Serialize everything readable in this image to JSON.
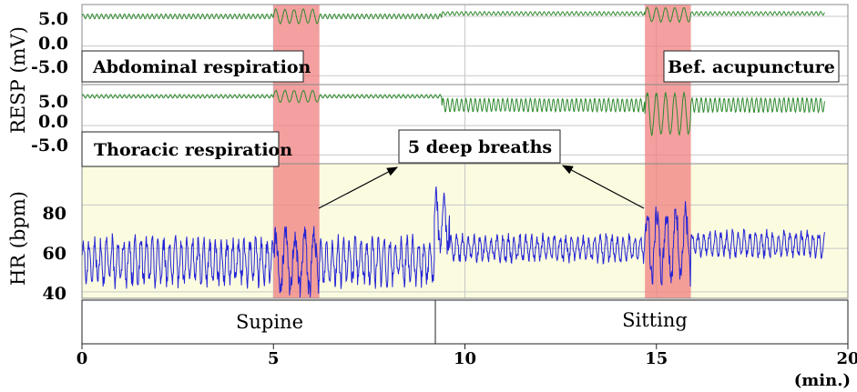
{
  "colors": {
    "resp_line": "#2f8a2f",
    "hr_line": "#2323d6",
    "hr_background": "#fbfbe0",
    "highlight": "#f08080",
    "grid": "#c8c8c8"
  },
  "labels": {
    "resp_ylabel": "RESP (mV)",
    "hr_ylabel": "HR (bpm)",
    "abdominal": "Abdominal respiration",
    "thoracic": "Thoracic respiration",
    "bef_acupuncture": "Bef. acupuncture",
    "deep_breaths": "5 deep breaths",
    "supine": "Supine",
    "sitting": "Sitting",
    "x_unit": "(min.)"
  },
  "chart_data": [
    {
      "type": "line",
      "panel": "abdominal",
      "ylabel": "RESP (mV)",
      "yticks": [
        "5.0",
        "0.0",
        "-5.0"
      ],
      "ylim": [
        -6.5,
        7
      ],
      "xlim": [
        0,
        20
      ],
      "series": [
        {
          "name": "Abdominal respiration",
          "segments": [
            {
              "x_start": 0.0,
              "x_end": 5.0,
              "baseline": 5.0,
              "amplitude": 0.4,
              "period": 0.12
            },
            {
              "x_start": 5.0,
              "x_end": 6.2,
              "baseline": 5.0,
              "amplitude": 1.2,
              "period": 0.24
            },
            {
              "x_start": 6.2,
              "x_end": 9.4,
              "baseline": 5.0,
              "amplitude": 0.4,
              "period": 0.12
            },
            {
              "x_start": 9.4,
              "x_end": 14.7,
              "baseline": 5.5,
              "amplitude": 0.3,
              "period": 0.12
            },
            {
              "x_start": 14.7,
              "x_end": 15.9,
              "baseline": 5.3,
              "amplitude": 1.2,
              "period": 0.24
            },
            {
              "x_start": 15.9,
              "x_end": 19.4,
              "baseline": 5.5,
              "amplitude": 0.3,
              "period": 0.12
            }
          ]
        }
      ]
    },
    {
      "type": "line",
      "panel": "thoracic",
      "ylabel": "RESP (mV)",
      "yticks": [
        "5.0",
        "0.0",
        "-5.0"
      ],
      "ylim": [
        -6.5,
        7
      ],
      "xlim": [
        0,
        20
      ],
      "series": [
        {
          "name": "Thoracic respiration",
          "segments": [
            {
              "x_start": 0.0,
              "x_end": 5.0,
              "baseline": 5.0,
              "amplitude": 0.3,
              "period": 0.12
            },
            {
              "x_start": 5.0,
              "x_end": 6.2,
              "baseline": 5.0,
              "amplitude": 1.0,
              "period": 0.24
            },
            {
              "x_start": 6.2,
              "x_end": 9.4,
              "baseline": 5.0,
              "amplitude": 0.3,
              "period": 0.12
            },
            {
              "x_start": 9.4,
              "x_end": 14.7,
              "baseline": 3.5,
              "amplitude": 1.1,
              "period": 0.12
            },
            {
              "x_start": 14.7,
              "x_end": 15.9,
              "baseline": 2.0,
              "amplitude": 3.5,
              "period": 0.24
            },
            {
              "x_start": 15.9,
              "x_end": 19.4,
              "baseline": 3.5,
              "amplitude": 1.2,
              "period": 0.12
            }
          ]
        }
      ]
    },
    {
      "type": "line",
      "panel": "heart_rate",
      "ylabel": "HR (bpm)",
      "yticks": [
        "80",
        "60",
        "40"
      ],
      "ylim": [
        37,
        99
      ],
      "xlim": [
        0,
        20
      ],
      "series": [
        {
          "name": "HR",
          "segments": [
            {
              "x_start": 0.0,
              "x_end": 5.0,
              "baseline": 54,
              "amplitude": 9,
              "period": 0.15
            },
            {
              "x_start": 5.0,
              "x_end": 6.2,
              "baseline": 54,
              "amplitude": 13,
              "period": 0.25
            },
            {
              "x_start": 6.2,
              "x_end": 9.2,
              "baseline": 54,
              "amplitude": 9,
              "period": 0.15
            },
            {
              "x_start": 9.2,
              "x_end": 9.6,
              "baseline": 72,
              "amplitude": 12,
              "period": 0.2
            },
            {
              "x_start": 9.6,
              "x_end": 14.7,
              "baseline": 60,
              "amplitude": 5,
              "period": 0.15
            },
            {
              "x_start": 14.7,
              "x_end": 15.9,
              "baseline": 62,
              "amplitude": 14,
              "period": 0.25
            },
            {
              "x_start": 15.9,
              "x_end": 19.4,
              "baseline": 62,
              "amplitude": 5,
              "period": 0.15
            }
          ]
        }
      ]
    }
  ],
  "x_axis": {
    "ticks": [
      "0",
      "5",
      "10",
      "15",
      "20"
    ],
    "tick_values": [
      0,
      5,
      10,
      15,
      20
    ],
    "xlim": [
      0,
      20
    ]
  },
  "highlights": [
    {
      "x_start": 5.0,
      "x_end": 6.2
    },
    {
      "x_start": 14.7,
      "x_end": 15.9
    }
  ],
  "postures": [
    {
      "label": "Supine",
      "x_start": 0,
      "x_end": 9.2
    },
    {
      "label": "Sitting",
      "x_start": 9.2,
      "x_end": 20
    }
  ]
}
